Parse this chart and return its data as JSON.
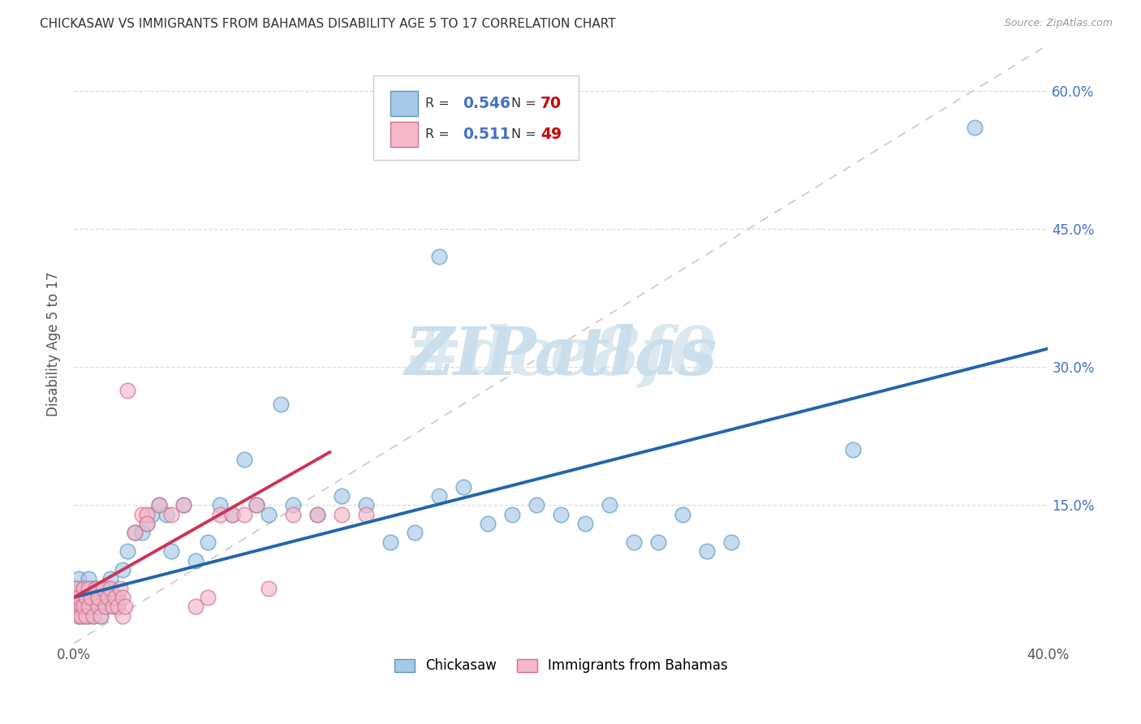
{
  "title": "CHICKASAW VS IMMIGRANTS FROM BAHAMAS DISABILITY AGE 5 TO 17 CORRELATION CHART",
  "source": "Source: ZipAtlas.com",
  "ylabel": "Disability Age 5 to 17",
  "x_min": 0.0,
  "x_max": 0.4,
  "y_min": 0.0,
  "y_max": 0.65,
  "y_tick_positions": [
    0.0,
    0.15,
    0.3,
    0.45,
    0.6
  ],
  "y_tick_labels": [
    "",
    "15.0%",
    "30.0%",
    "45.0%",
    "60.0%"
  ],
  "x_tick_positions": [
    0.0,
    0.1,
    0.2,
    0.3,
    0.4
  ],
  "x_tick_labels": [
    "0.0%",
    "",
    "",
    "",
    "40.0%"
  ],
  "chickasaw_R": "0.546",
  "chickasaw_N": "70",
  "bahamas_R": "0.511",
  "bahamas_N": "49",
  "chickasaw_fill": "#a8c8e8",
  "chickasaw_edge": "#5b9aba",
  "bahamas_fill": "#f4b8c8",
  "bahamas_edge": "#d07090",
  "chickasaw_line_color": "#2166ac",
  "bahamas_line_color": "#cc3355",
  "diag_color": "#cccccc",
  "watermark_color": "#dce8f0",
  "legend_box_color": "#cccccc",
  "legend_R_color": "#4472c4",
  "legend_N_color": "#cc0000",
  "right_axis_color": "#4472c4",
  "title_color": "#333333",
  "source_color": "#999999"
}
